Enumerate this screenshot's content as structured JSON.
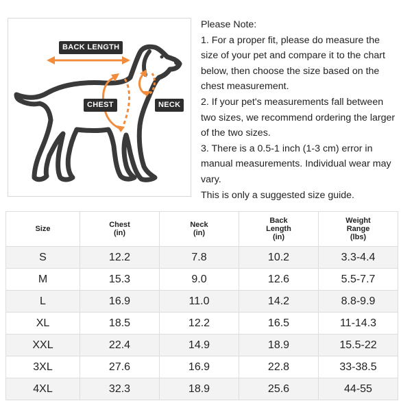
{
  "diagram": {
    "labels": {
      "back_length": "BACK LENGTH",
      "chest": "CHEST",
      "neck": "NECK"
    },
    "colors": {
      "accent": "#f08c3c",
      "outline": "#3a3a3a",
      "badge_bg": "#2e2e2e"
    }
  },
  "notes": {
    "heading": "Please Note:",
    "items": [
      "1. For a proper fit, please do measure the size of your pet and compare it to the chart below, then choose the size based on the chest measurement.",
      "2. If your pet's measurements fall between two sizes, we recommend ordering the larger of the two sizes.",
      "3. There is a 0.5-1 inch (1-3 cm) error in manual measurements. Individual wear may vary."
    ],
    "footer": "This is only a suggested size guide."
  },
  "table": {
    "headers": [
      [
        "Size"
      ],
      [
        "Chest",
        "(in)"
      ],
      [
        "Neck",
        "(in)"
      ],
      [
        "Back",
        "Length",
        "(in)"
      ],
      [
        "Weight",
        "Range",
        "(lbs)"
      ]
    ],
    "rows": [
      [
        "S",
        "12.2",
        "7.8",
        "10.2",
        "3.3-4.4"
      ],
      [
        "M",
        "15.3",
        "9.0",
        "12.6",
        "5.5-7.7"
      ],
      [
        "L",
        "16.9",
        "11.0",
        "14.2",
        "8.8-9.9"
      ],
      [
        "XL",
        "18.5",
        "12.2",
        "16.5",
        "11-14.3"
      ],
      [
        "XXL",
        "22.4",
        "14.9",
        "18.9",
        "15.5-22"
      ],
      [
        "3XL",
        "27.6",
        "16.9",
        "22.8",
        "33-38.5"
      ],
      [
        "4XL",
        "32.3",
        "18.9",
        "25.6",
        "44-55"
      ]
    ]
  }
}
